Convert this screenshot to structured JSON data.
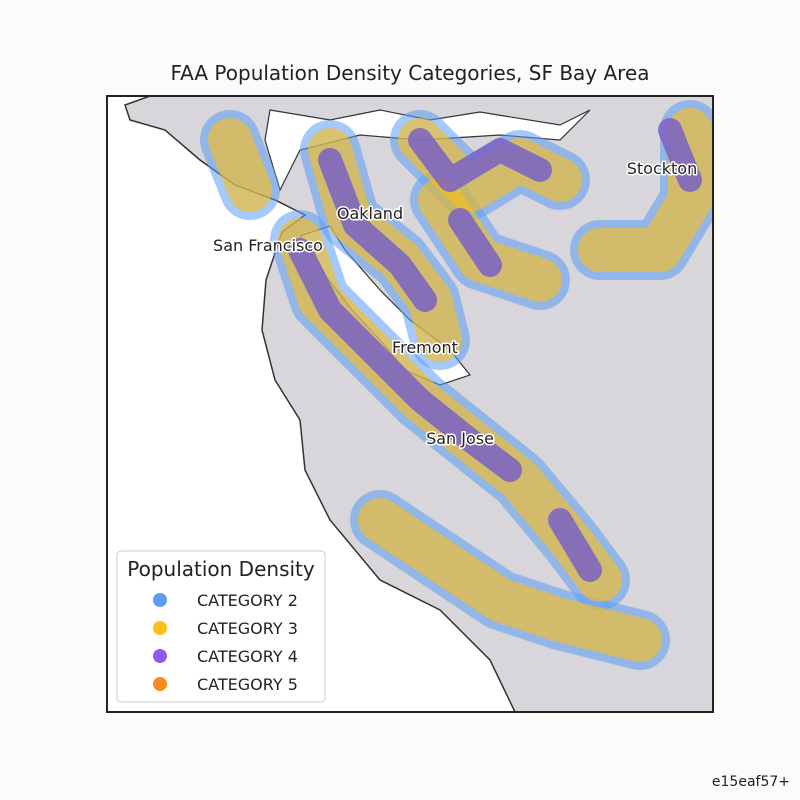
{
  "title": "FAA Population Density Categories, SF Bay Area",
  "map": {
    "labels": [
      "Stockton",
      "Oakland",
      "San Francisco",
      "Fremont",
      "San Jose"
    ]
  },
  "legend": {
    "title": "Population Density",
    "entries": [
      {
        "label": "CATEGORY 2",
        "color": "#5b9cf5"
      },
      {
        "label": "CATEGORY 3",
        "color": "#fbbf17"
      },
      {
        "label": "CATEGORY 4",
        "color": "#8b5cf6"
      },
      {
        "label": "CATEGORY 5",
        "color": "#f98a1d"
      }
    ]
  },
  "footer": "e15eaf57+"
}
